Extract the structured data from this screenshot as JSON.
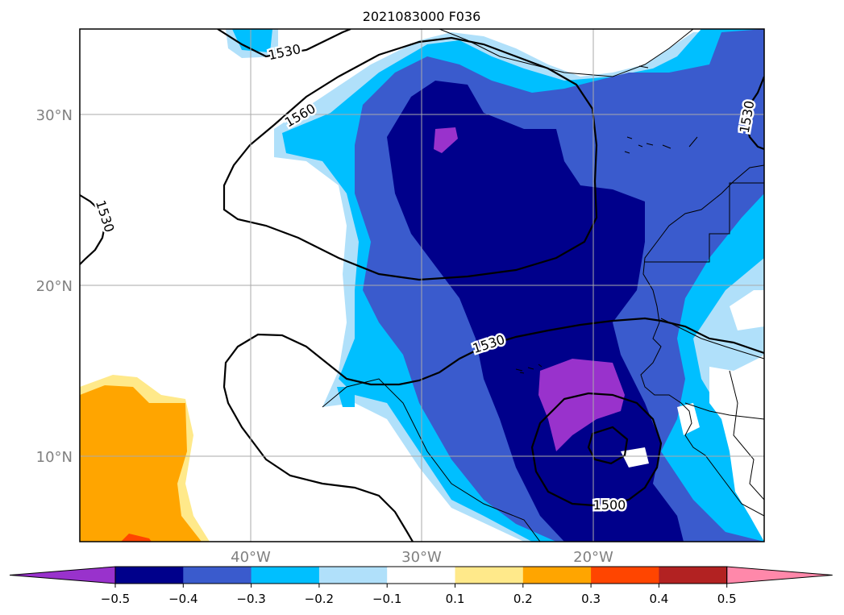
{
  "title": "2021083000 F036",
  "map": {
    "lon_range": [
      -50,
      -10
    ],
    "lat_range": [
      5,
      35
    ],
    "gridlines": true,
    "lon_ticks": [
      {
        "value": -40,
        "label": "40°W"
      },
      {
        "value": -30,
        "label": "30°W"
      },
      {
        "value": -20,
        "label": "20°W"
      }
    ],
    "lat_ticks": [
      {
        "value": 30,
        "label": "30°N"
      },
      {
        "value": 20,
        "label": "20°N"
      },
      {
        "value": 10,
        "label": "10°N"
      }
    ],
    "contour_labels": [
      {
        "id": "c1530-top",
        "text": "1530"
      },
      {
        "id": "c1560",
        "text": "1560"
      },
      {
        "id": "c1530-left",
        "text": "1530"
      },
      {
        "id": "c1530-right",
        "text": "1530"
      },
      {
        "id": "c1530-mid",
        "text": "1530"
      },
      {
        "id": "c1500",
        "text": "1500"
      }
    ],
    "contour_color": "#000000"
  },
  "colorbar": {
    "orientation": "horizontal",
    "extend": "both",
    "tick_labels": [
      "−0.5",
      "−0.4",
      "−0.3",
      "−0.2",
      "−0.1",
      "0.1",
      "0.2",
      "0.3",
      "0.4",
      "0.5"
    ],
    "bins": [
      {
        "range": "< -0.5",
        "color": "#9932cc"
      },
      {
        "range": "-0.5 to -0.4",
        "color": "#00008b"
      },
      {
        "range": "-0.4 to -0.3",
        "color": "#3a5bcd"
      },
      {
        "range": "-0.3 to -0.2",
        "color": "#00bfff"
      },
      {
        "range": "-0.2 to -0.1",
        "color": "#b0e0fa"
      },
      {
        "range": "-0.1 to 0.1",
        "color": "#ffffff"
      },
      {
        "range": "0.1 to 0.2",
        "color": "#ffe98a"
      },
      {
        "range": "0.2 to 0.3",
        "color": "#ffa500"
      },
      {
        "range": "0.3 to 0.4",
        "color": "#ff4500"
      },
      {
        "range": "0.4 to 0.5",
        "color": "#b22222"
      },
      {
        "range": "> 0.5",
        "color": "#ff88aa"
      }
    ]
  }
}
